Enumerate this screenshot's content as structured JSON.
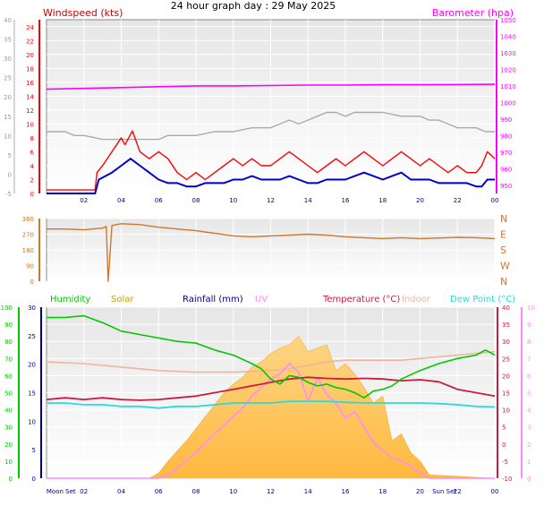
{
  "page_title": "24 hour graph day : 29 May 2025",
  "colors": {
    "windspeed": "#ff0000",
    "windavg": "#0000cc",
    "barometer": "#ff00ff",
    "winddir": "#d0772a",
    "humidity": "#00c800",
    "solar": "#ffb938",
    "rainfall": "#00008b",
    "uv": "#ff88ff",
    "temperature": "#c81e3c",
    "indoor": "#f2b49b",
    "dewpoint": "#28dcdc",
    "grey_series": "#aaaaaa"
  },
  "chart_data": [
    {
      "type": "line",
      "title": "Windspeed (kts)",
      "right_title": "Barometer (hpa)",
      "x_ticks": [
        "02",
        "04",
        "06",
        "08",
        "10",
        "12",
        "14",
        "16",
        "18",
        "20",
        "22",
        "00"
      ],
      "y_left_outer_ticks": [
        "-5",
        "0",
        "5",
        "10",
        "15",
        "20",
        "25",
        "30",
        "35",
        "40"
      ],
      "y_left_inner_ticks": [
        "0",
        "2",
        "4",
        "6",
        "8",
        "10",
        "12",
        "14",
        "16",
        "18",
        "20",
        "22",
        "24"
      ],
      "y_right_ticks": [
        "950",
        "960",
        "970",
        "980",
        "990",
        "1000",
        "1010",
        "1020",
        "1030",
        "1040",
        "1050"
      ],
      "ylim_outer": [
        -5,
        40
      ],
      "ylim_inner": [
        0,
        25
      ],
      "ylim_right": [
        945,
        1050
      ],
      "series": [
        {
          "key": "gust",
          "x": [
            0,
            2.6,
            2.7,
            3,
            3.5,
            4,
            4.2,
            4.6,
            5,
            5.5,
            6,
            6.5,
            7,
            7.5,
            8,
            8.5,
            9,
            9.5,
            10,
            10.5,
            11,
            11.5,
            12,
            12.5,
            13,
            13.5,
            14,
            14.5,
            15,
            15.5,
            16,
            16.5,
            17,
            17.5,
            18,
            18.5,
            19,
            19.5,
            20,
            20.5,
            21,
            21.5,
            22,
            22.5,
            23,
            23.3,
            23.6,
            24
          ],
          "values": [
            0.5,
            0.5,
            3,
            4,
            6,
            8,
            7,
            9,
            6,
            5,
            6,
            5,
            3,
            2,
            3,
            2,
            3,
            4,
            5,
            4,
            5,
            4,
            4,
            5,
            6,
            5,
            4,
            3,
            4,
            5,
            4,
            5,
            6,
            5,
            4,
            5,
            6,
            5,
            4,
            5,
            4,
            3,
            4,
            3,
            3,
            4,
            6,
            5
          ]
        },
        {
          "key": "average",
          "x": [
            0,
            2.6,
            2.8,
            3.5,
            4,
            4.5,
            5,
            5.5,
            6,
            6.5,
            7,
            7.5,
            8,
            8.5,
            9,
            9.5,
            10,
            10.5,
            11,
            11.5,
            12,
            12.5,
            13,
            13.5,
            14,
            14.5,
            15,
            15.5,
            16,
            16.5,
            17,
            17.5,
            18,
            18.5,
            19,
            19.5,
            20,
            20.5,
            21,
            21.5,
            22,
            22.5,
            23,
            23.3,
            23.6,
            24
          ],
          "values": [
            0,
            0,
            2,
            3,
            4,
            5,
            4,
            3,
            2,
            1.5,
            1.5,
            1,
            1,
            1.5,
            1.5,
            1.5,
            2,
            2,
            2.5,
            2,
            2,
            2,
            2.5,
            2,
            1.5,
            1.5,
            2,
            2,
            2,
            2.5,
            3,
            2.5,
            2,
            2.5,
            3,
            2,
            2,
            2,
            1.5,
            1.5,
            1.5,
            1.5,
            1,
            1,
            2,
            2
          ]
        },
        {
          "key": "outer_grey",
          "x": [
            0,
            1,
            1.5,
            2,
            3,
            4,
            5,
            6,
            6.5,
            7,
            8,
            9,
            10,
            11,
            12,
            12.5,
            13,
            13.5,
            14,
            14.5,
            15,
            15.5,
            16,
            16.5,
            17,
            17.5,
            18,
            19,
            20,
            20.5,
            21,
            21.5,
            22,
            22.5,
            23,
            23.5,
            24
          ],
          "values": [
            11,
            11,
            10,
            10,
            9,
            9,
            9,
            9,
            10,
            10,
            10,
            11,
            11,
            12,
            12,
            13,
            14,
            13,
            14,
            15,
            16,
            16,
            15,
            16,
            16,
            16,
            16,
            15,
            15,
            14,
            14,
            13,
            12,
            12,
            12,
            11,
            11
          ]
        },
        {
          "key": "barometer",
          "x": [
            0,
            2,
            4,
            6,
            8,
            10,
            12,
            14,
            16,
            18,
            20,
            22,
            24
          ],
          "values": [
            1008,
            1008.5,
            1009,
            1009.5,
            1010,
            1010,
            1010.2,
            1010.5,
            1010.5,
            1010.7,
            1010.7,
            1010.8,
            1011
          ]
        }
      ]
    },
    {
      "type": "line",
      "title": "Wind direction",
      "y_left_ticks": [
        "0",
        "90",
        "180",
        "270",
        "360"
      ],
      "y_right_labels": [
        "N",
        "E",
        "S",
        "W",
        "N"
      ],
      "ylim": [
        0,
        360
      ],
      "x": [
        0,
        1,
        2,
        3,
        3.2,
        3.3,
        3.5,
        4,
        5,
        6,
        7,
        8,
        9,
        10,
        11,
        12,
        13,
        14,
        15,
        16,
        17,
        18,
        19,
        20,
        21,
        22,
        23,
        24
      ],
      "values": [
        300,
        300,
        295,
        305,
        315,
        0,
        320,
        330,
        325,
        310,
        300,
        290,
        275,
        260,
        255,
        260,
        265,
        270,
        265,
        255,
        250,
        245,
        250,
        245,
        248,
        252,
        250,
        245
      ]
    },
    {
      "type": "line",
      "labels": [
        "Humidity",
        "Solar",
        "Rainfall (mm)",
        "UV",
        "Temperature (°C)",
        "Indoor",
        "Dew Point (°C)"
      ],
      "x_ticks": [
        "Moon Set",
        "02",
        "04",
        "06",
        "08",
        "10",
        "12",
        "14",
        "16",
        "18",
        "20",
        "Sun Set",
        "22",
        "00"
      ],
      "y_humidity_ticks": [
        "0",
        "10",
        "20",
        "30",
        "40",
        "50",
        "60",
        "70",
        "80",
        "90",
        "100"
      ],
      "y_rain_ticks": [
        "0",
        "5",
        "10",
        "15",
        "20",
        "25",
        "30"
      ],
      "y_temp_ticks": [
        "-10",
        "-5",
        "0",
        "5",
        "10",
        "15",
        "20",
        "25",
        "30",
        "35",
        "40"
      ],
      "y_uv_ticks": [
        "0",
        "1",
        "2",
        "3",
        "4",
        "5",
        "6",
        "7",
        "8",
        "9",
        "10"
      ],
      "ylim_humidity": [
        0,
        100
      ],
      "ylim_temperature": [
        -10,
        40
      ],
      "ylim_uv": [
        0,
        10
      ],
      "series": [
        {
          "key": "humidity",
          "x": [
            0,
            1,
            2,
            3,
            4,
            5,
            6,
            7,
            8,
            9,
            10,
            11,
            11.5,
            12,
            12.5,
            13,
            13.5,
            14,
            14.5,
            15,
            15.5,
            16,
            16.5,
            17,
            17.5,
            18,
            18.5,
            19,
            20,
            21,
            22,
            23,
            23.5,
            24
          ],
          "values": [
            94,
            94,
            95,
            91,
            86,
            84,
            82,
            80,
            79,
            75,
            72,
            67,
            64,
            58,
            55,
            60,
            59,
            56,
            54,
            55,
            53,
            52,
            50,
            47,
            51,
            52,
            54,
            58,
            63,
            67,
            70,
            72,
            75,
            72
          ]
        },
        {
          "key": "solar_uv_area",
          "x": [
            0,
            5.5,
            6,
            6.5,
            7,
            7.5,
            8,
            8.5,
            9,
            9.5,
            10,
            10.5,
            11,
            11.5,
            12,
            12.5,
            13,
            13.5,
            14,
            14.5,
            15,
            15.5,
            16,
            16.5,
            17,
            17.5,
            18,
            18.5,
            19,
            19.5,
            20,
            20.5,
            24
          ],
          "values": [
            0,
            0,
            0.3,
            1,
            1.6,
            2.2,
            2.9,
            3.6,
            4.3,
            5,
            5.5,
            5.9,
            6.5,
            6.8,
            7.3,
            7.6,
            7.8,
            8.3,
            7.4,
            7.6,
            7.8,
            6.3,
            6.7,
            6.1,
            5.3,
            4.4,
            4.8,
            2.2,
            2.6,
            1.5,
            1,
            0.2,
            0
          ]
        },
        {
          "key": "uv",
          "x": [
            0,
            6,
            6.5,
            7,
            8,
            9,
            10,
            10.5,
            11,
            11.5,
            12,
            12.5,
            13,
            13.5,
            14,
            14.5,
            15,
            15.5,
            16,
            16.5,
            17,
            17.5,
            18,
            18.5,
            19,
            19.5,
            20,
            20.5,
            21,
            24
          ],
          "values": [
            0,
            0,
            0.2,
            0.6,
            1.5,
            2.6,
            3.6,
            4.1,
            4.8,
            5.3,
            5.8,
            6.1,
            6.7,
            6.2,
            4.5,
            5.9,
            4.9,
            4.4,
            3.5,
            3.9,
            3,
            2.1,
            1.6,
            1.2,
            1,
            0.7,
            0.3,
            0,
            0,
            0
          ]
        },
        {
          "key": "temperature",
          "x": [
            0,
            1,
            2,
            3,
            4,
            5,
            6,
            7,
            8,
            9,
            10,
            11,
            12,
            13,
            14,
            15,
            16,
            17,
            18,
            19,
            20,
            21,
            22,
            23,
            24
          ],
          "values": [
            13,
            13.5,
            13,
            13.5,
            13,
            12.8,
            13,
            13.5,
            14,
            15,
            16,
            17,
            18,
            19,
            19.5,
            19.2,
            19,
            19.2,
            19,
            18.5,
            18.8,
            18.2,
            16,
            15,
            14
          ]
        },
        {
          "key": "indoor",
          "x": [
            0,
            2,
            4,
            6,
            8,
            10,
            12,
            13,
            14,
            15,
            16,
            17,
            18,
            19,
            20,
            21,
            22,
            23,
            24
          ],
          "values": [
            24,
            23.5,
            22.5,
            21.5,
            21,
            21,
            21.5,
            22,
            23,
            24,
            24.5,
            24.5,
            24.5,
            24.5,
            25,
            25.5,
            26,
            26.5,
            27
          ]
        },
        {
          "key": "dewpoint",
          "x": [
            0,
            1,
            2,
            3,
            4,
            5,
            6,
            7,
            8,
            9,
            10,
            11,
            12,
            13,
            14,
            15,
            16,
            17,
            18,
            19,
            20,
            21,
            22,
            23,
            24
          ],
          "values": [
            12,
            12,
            11.5,
            11.5,
            11,
            11,
            10.5,
            11,
            11,
            11.5,
            12,
            12,
            12,
            12.5,
            12.5,
            12.5,
            12.2,
            12,
            12,
            12,
            12,
            11.8,
            11.5,
            11,
            10.8
          ]
        }
      ]
    }
  ]
}
